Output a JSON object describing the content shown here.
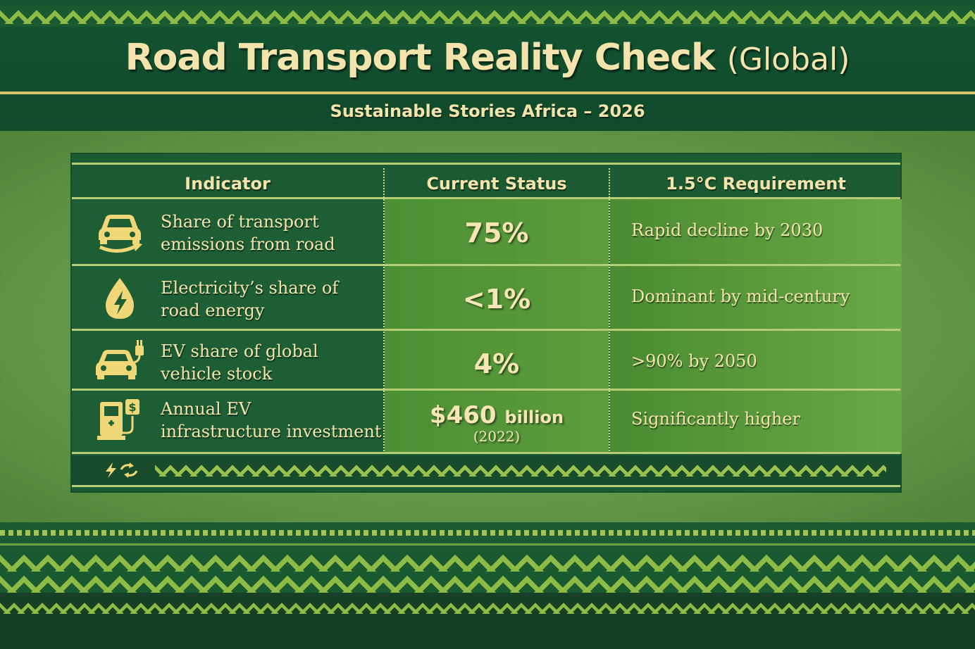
{
  "header": {
    "title": "Road Transport Reality Check",
    "title_suffix": "(Global)",
    "subtitle": "Sustainable Stories Africa – 2026"
  },
  "table": {
    "columns": [
      "Indicator",
      "Current Status",
      "1.5°C Requirement"
    ],
    "rows": [
      {
        "icon": "car-arrow-icon",
        "indicator": [
          "Share of transport",
          "emissions from road"
        ],
        "status": "75%",
        "requirement": "Rapid decline by 2030"
      },
      {
        "icon": "energy-drop-icon",
        "indicator": [
          "Electricity’s share of",
          "road energy"
        ],
        "status": "<1%",
        "requirement": "Dominant by mid-century"
      },
      {
        "icon": "ev-plug-icon",
        "indicator": [
          "EV share of global",
          "vehicle stock"
        ],
        "status": "4%",
        "requirement": ">90% by 2050"
      },
      {
        "icon": "charging-station-dollar-icon",
        "indicator": [
          "Annual EV",
          "infrastructure investment"
        ],
        "status": "$460",
        "status_unit": "billion",
        "status_note": "(2022)",
        "requirement": "Significantly higher"
      }
    ]
  },
  "colors": {
    "dark_green": "#1b5a33",
    "gold_text": "#f3e3ad",
    "accent_green": "#8dbb46"
  }
}
